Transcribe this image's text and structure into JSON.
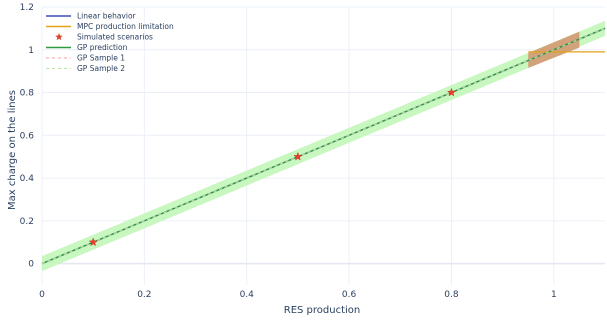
{
  "chart_data": {
    "type": "line",
    "xlabel": "RES production",
    "ylabel": "Max charge on the lines",
    "xlim": [
      0,
      1.1
    ],
    "ylim": [
      -0.1,
      1.2
    ],
    "x_ticks": [
      0,
      0.2,
      0.4,
      0.6,
      0.8,
      1
    ],
    "y_ticks": [
      0,
      0.2,
      0.4,
      0.6,
      0.8,
      1,
      1.2
    ],
    "grid": true,
    "legend_position": "top-left",
    "series": [
      {
        "name": "Linear behavior",
        "kind": "line",
        "color": "#3e4db8",
        "x": [
          0,
          1.1
        ],
        "y": [
          0,
          1.1
        ]
      },
      {
        "name": "MPC production limitation",
        "kind": "line",
        "color": "#e3a21a",
        "x": [
          0.95,
          1.1
        ],
        "y": [
          0.99,
          0.99
        ]
      },
      {
        "name": "Simulated scenarios",
        "kind": "scatter",
        "marker": "star",
        "color": "#e8402b",
        "x": [
          0.1,
          0.5,
          0.8
        ],
        "y": [
          0.1,
          0.5,
          0.8
        ]
      },
      {
        "name": "GP prediction",
        "kind": "line",
        "color": "#2e9a3c",
        "x": [
          0,
          1.1
        ],
        "y": [
          0,
          1.1
        ]
      },
      {
        "name": "GP Sample 1",
        "kind": "dash",
        "color": "#f4a2a2",
        "x": [
          0,
          1.1
        ],
        "y": [
          0,
          1.1
        ]
      },
      {
        "name": "GP Sample 2",
        "kind": "dash",
        "color": "#b6e6a6",
        "x": [
          0,
          1.1
        ],
        "y": [
          0,
          1.1
        ]
      }
    ],
    "bands": [
      {
        "color": "#c8f7c0",
        "x": [
          0,
          1.1
        ],
        "lower": [
          -0.035,
          1.065
        ],
        "upper": [
          0.035,
          1.135
        ]
      },
      {
        "color": "#d2a37a",
        "x": [
          0.95,
          1.05
        ],
        "lower": [
          0.915,
          1.01
        ],
        "upper": [
          0.985,
          1.085
        ]
      }
    ]
  }
}
